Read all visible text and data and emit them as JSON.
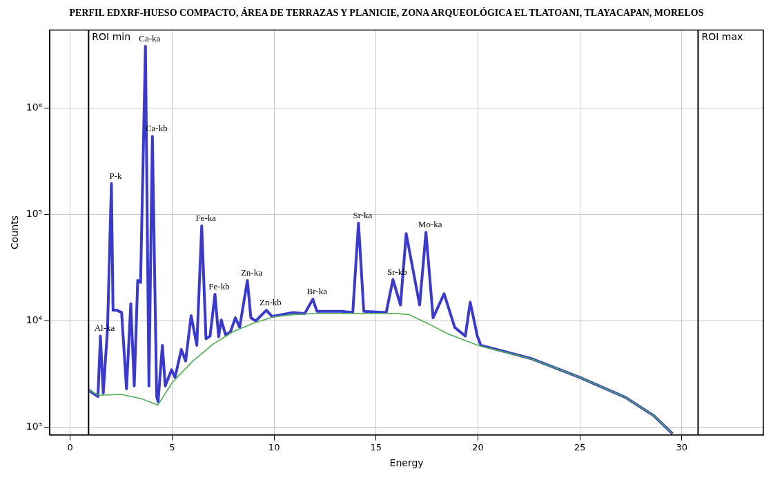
{
  "chart_data": {
    "type": "line",
    "title": "PERFIL EDXRF-HUESO COMPACTO, ÁREA DE TERRAZAS Y PLANICIE, ZONA ARQUEOLÓGICA EL TLATOANI, TLAYACAPAN, MORELOS",
    "xlabel": "Energy",
    "ylabel": "Counts",
    "log": "y",
    "grid": true,
    "legend": false,
    "marker": "none",
    "line_style": "solid",
    "xlim": [
      -1,
      34
    ],
    "xticks": [
      0,
      5,
      10,
      15,
      20,
      25,
      30
    ],
    "ylim": [
      850,
      5400000
    ],
    "yticks": [
      {
        "value": 1000,
        "label": "10³"
      },
      {
        "value": 10000,
        "label": "10⁴"
      },
      {
        "value": 100000,
        "label": "10⁵"
      },
      {
        "value": 1000000,
        "label": "10⁶"
      }
    ],
    "series": [
      {
        "color": "#3a3acc",
        "x": [
          0.9,
          1.36,
          1.48,
          1.62,
          1.83,
          2.02,
          2.1,
          2.28,
          2.52,
          2.76,
          2.97,
          3.14,
          3.31,
          3.45,
          3.69,
          3.86,
          4.03,
          4.24,
          4.31,
          4.52,
          4.66,
          4.97,
          5.14,
          5.45,
          5.66,
          5.93,
          6.21,
          6.45,
          6.66,
          6.86,
          7.1,
          7.28,
          7.41,
          7.62,
          7.86,
          8.1,
          8.31,
          8.69,
          8.86,
          9.1,
          9.62,
          9.9,
          10.93,
          11.5,
          11.9,
          12.1,
          13.3,
          13.86,
          14.14,
          14.4,
          15.5,
          15.83,
          16.2,
          16.48,
          17.14,
          17.45,
          17.8,
          18.34,
          18.86,
          19.38,
          19.62,
          19.97,
          20.14,
          22.66,
          25,
          27.24,
          28.62,
          29.55
        ],
        "values": [
          2240,
          1950,
          7200,
          2100,
          8500,
          195000,
          12600,
          12600,
          12000,
          2300,
          14500,
          2450,
          24000,
          23000,
          3800000,
          2450,
          540000,
          1950,
          1740,
          5900,
          2450,
          3470,
          2950,
          5400,
          4200,
          11200,
          5900,
          78000,
          6800,
          7200,
          17800,
          7100,
          10200,
          7400,
          7900,
          10700,
          8700,
          24000,
          10700,
          10000,
          12600,
          11000,
          12000,
          11700,
          16000,
          12300,
          12300,
          12000,
          83000,
          12300,
          12000,
          24500,
          14100,
          66000,
          14100,
          68000,
          10700,
          18000,
          8700,
          7200,
          15000,
          7200,
          5900,
          4400,
          2950,
          1910,
          1290,
          870
        ]
      },
      {
        "color": "#4caf50",
        "x": [
          0.9,
          1.4,
          2.5,
          3.5,
          4.3,
          5,
          6,
          7,
          8,
          9,
          10,
          11,
          12,
          14,
          16,
          16.6,
          17.5,
          18.5,
          20,
          22.66,
          25,
          27.24,
          28.62,
          29.55
        ],
        "values": [
          2240,
          2000,
          2040,
          1860,
          1620,
          2630,
          4170,
          6030,
          7940,
          9550,
          10960,
          11480,
          11750,
          11750,
          11750,
          11480,
          9550,
          7590,
          5890,
          4370,
          2950,
          1910,
          1290,
          870
        ]
      }
    ],
    "ref_lines": [
      {
        "axis": "x",
        "value": 0.9,
        "label": "ROI min",
        "color": "#000000"
      },
      {
        "axis": "x",
        "value": 30.8,
        "label": "ROI max",
        "color": "#000000"
      }
    ],
    "annotations": [
      {
        "text": "Al-ka",
        "x": 1.48,
        "y": 7200
      },
      {
        "text": "P-k",
        "x": 2.02,
        "y": 195000
      },
      {
        "text": "Ca-ka",
        "x": 3.69,
        "y": 3800000
      },
      {
        "text": "Ca-kb",
        "x": 4.03,
        "y": 540000
      },
      {
        "text": "Fe-ka",
        "x": 6.45,
        "y": 78000
      },
      {
        "text": "Fe-kb",
        "x": 7.1,
        "y": 17800
      },
      {
        "text": "Zn-ka",
        "x": 8.69,
        "y": 24000
      },
      {
        "text": "Zn-kb",
        "x": 9.62,
        "y": 12600
      },
      {
        "text": "Br-ka",
        "x": 11.9,
        "y": 16000
      },
      {
        "text": "Sr-ka",
        "x": 14.14,
        "y": 83000
      },
      {
        "text": "Sr-kb",
        "x": 15.83,
        "y": 24500
      },
      {
        "text": "Mo-ka",
        "x": 17.45,
        "y": 68000
      }
    ]
  }
}
